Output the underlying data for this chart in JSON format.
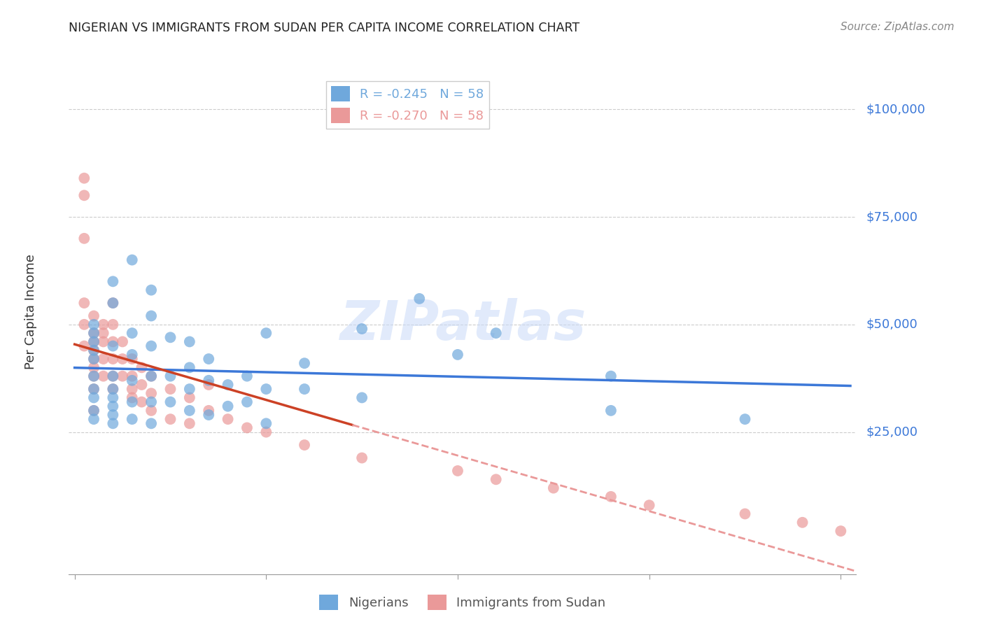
{
  "title": "NIGERIAN VS IMMIGRANTS FROM SUDAN PER CAPITA INCOME CORRELATION CHART",
  "source": "Source: ZipAtlas.com",
  "ylabel": "Per Capita Income",
  "ymin": -8000,
  "ymax": 108000,
  "xmin": -0.003,
  "xmax": 0.408,
  "legend_entries": [
    {
      "label": "R = -0.245   N = 58",
      "color": "#6fa8dc"
    },
    {
      "label": "R = -0.270   N = 58",
      "color": "#ea9999"
    }
  ],
  "legend_label_nigerians": "Nigerians",
  "legend_label_sudan": "Immigrants from Sudan",
  "blue_scatter_color": "#6fa8dc",
  "pink_scatter_color": "#ea9999",
  "blue_line_color": "#3c78d8",
  "pink_line_color": "#cc4125",
  "pink_dashed_color": "#ea9999",
  "watermark_text": "ZIPatlas",
  "ytick_values": [
    25000,
    50000,
    75000,
    100000
  ],
  "ytick_labels": [
    "$25,000",
    "$50,000",
    "$75,000",
    "$100,000"
  ],
  "nigerians_x": [
    0.01,
    0.01,
    0.01,
    0.01,
    0.01,
    0.01,
    0.01,
    0.01,
    0.01,
    0.01,
    0.02,
    0.02,
    0.02,
    0.02,
    0.02,
    0.02,
    0.02,
    0.02,
    0.02,
    0.03,
    0.03,
    0.03,
    0.03,
    0.03,
    0.03,
    0.04,
    0.04,
    0.04,
    0.04,
    0.04,
    0.04,
    0.05,
    0.05,
    0.05,
    0.06,
    0.06,
    0.06,
    0.06,
    0.07,
    0.07,
    0.07,
    0.08,
    0.08,
    0.09,
    0.09,
    0.1,
    0.1,
    0.1,
    0.12,
    0.12,
    0.15,
    0.15,
    0.18,
    0.2,
    0.22,
    0.28,
    0.28,
    0.35
  ],
  "nigerians_y": [
    42000,
    38000,
    35000,
    33000,
    30000,
    44000,
    46000,
    48000,
    50000,
    28000,
    55000,
    60000,
    45000,
    38000,
    35000,
    33000,
    31000,
    29000,
    27000,
    65000,
    48000,
    43000,
    37000,
    32000,
    28000,
    58000,
    52000,
    45000,
    38000,
    32000,
    27000,
    47000,
    38000,
    32000,
    46000,
    40000,
    35000,
    30000,
    42000,
    37000,
    29000,
    36000,
    31000,
    38000,
    32000,
    48000,
    35000,
    27000,
    41000,
    35000,
    49000,
    33000,
    56000,
    43000,
    48000,
    38000,
    30000,
    28000
  ],
  "sudan_x": [
    0.005,
    0.005,
    0.005,
    0.005,
    0.005,
    0.005,
    0.01,
    0.01,
    0.01,
    0.01,
    0.01,
    0.01,
    0.01,
    0.01,
    0.01,
    0.015,
    0.015,
    0.015,
    0.015,
    0.015,
    0.02,
    0.02,
    0.02,
    0.02,
    0.02,
    0.02,
    0.025,
    0.025,
    0.025,
    0.03,
    0.03,
    0.03,
    0.03,
    0.035,
    0.035,
    0.035,
    0.04,
    0.04,
    0.04,
    0.05,
    0.05,
    0.06,
    0.06,
    0.07,
    0.07,
    0.08,
    0.09,
    0.1,
    0.12,
    0.15,
    0.2,
    0.22,
    0.25,
    0.28,
    0.3,
    0.35,
    0.38,
    0.4
  ],
  "sudan_y": [
    80000,
    84000,
    70000,
    55000,
    50000,
    45000,
    52000,
    48000,
    46000,
    44000,
    42000,
    40000,
    38000,
    35000,
    30000,
    50000,
    48000,
    46000,
    42000,
    38000,
    55000,
    50000,
    46000,
    42000,
    38000,
    35000,
    46000,
    42000,
    38000,
    42000,
    38000,
    35000,
    33000,
    40000,
    36000,
    32000,
    38000,
    34000,
    30000,
    35000,
    28000,
    33000,
    27000,
    36000,
    30000,
    28000,
    26000,
    25000,
    22000,
    19000,
    16000,
    14000,
    12000,
    10000,
    8000,
    6000,
    4000,
    2000
  ]
}
